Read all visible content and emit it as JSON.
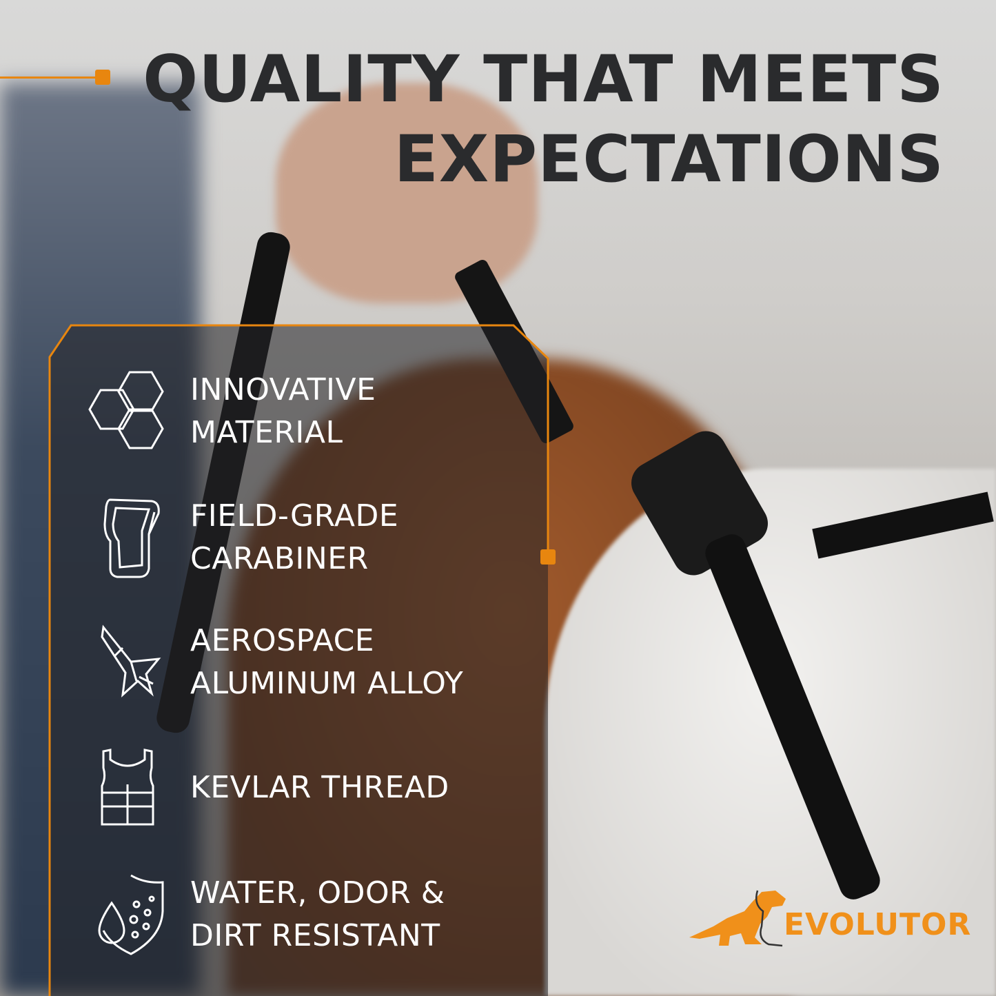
{
  "headline": {
    "line1": "QUALITY THAT MEETS",
    "line2": "EXPECTATIONS"
  },
  "features": [
    {
      "icon": "honeycomb-icon",
      "lines": [
        "INNOVATIVE",
        "MATERIAL"
      ]
    },
    {
      "icon": "carabiner-icon",
      "lines": [
        "FIELD-GRADE",
        "CARABINER"
      ]
    },
    {
      "icon": "jet-plane-icon",
      "lines": [
        "AEROSPACE",
        "ALUMINUM ALLOY"
      ]
    },
    {
      "icon": "vest-icon",
      "lines": [
        "KEVLAR THREAD"
      ]
    },
    {
      "icon": "shield-droplet-icon",
      "lines": [
        "WATER, ODOR &",
        "DIRT RESISTANT"
      ]
    }
  ],
  "brand": {
    "name": "EVOLUTOR",
    "color": "#f0901a"
  },
  "colors": {
    "accent": "#e8860f",
    "headline": "#2a2b2d",
    "feature_text": "#ffffff"
  }
}
